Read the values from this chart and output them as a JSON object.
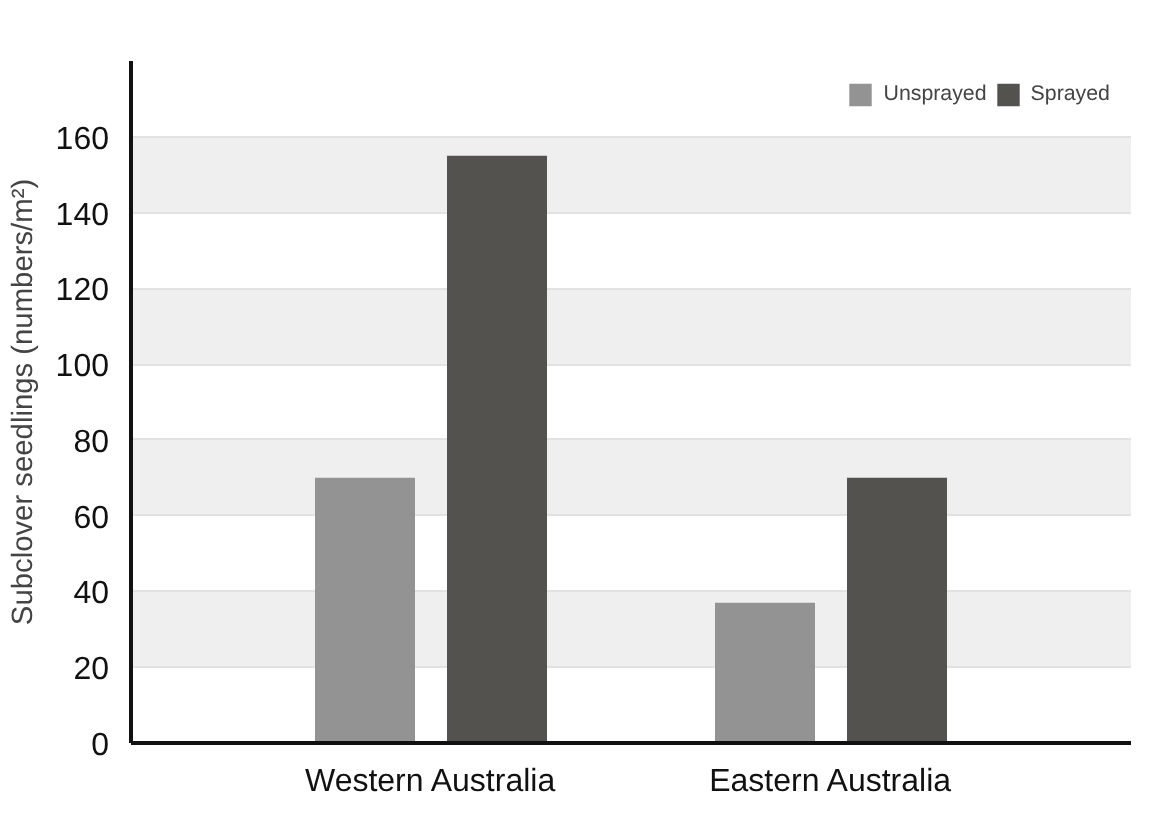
{
  "chart_data": {
    "type": "bar",
    "ylabel": "Subclover seedlings (numbers/m²)",
    "categories": [
      "Western Australia",
      "Eastern Australia"
    ],
    "series": [
      {
        "name": "Unsprayed",
        "color": "#939393",
        "values": [
          70,
          37
        ]
      },
      {
        "name": "Sprayed",
        "color": "#54524f",
        "values": [
          155,
          70
        ]
      }
    ],
    "ylim": [
      0,
      180
    ],
    "yticks": [
      0,
      20,
      40,
      60,
      80,
      100,
      120,
      140,
      160
    ],
    "grid": "y",
    "legend": "top right"
  }
}
